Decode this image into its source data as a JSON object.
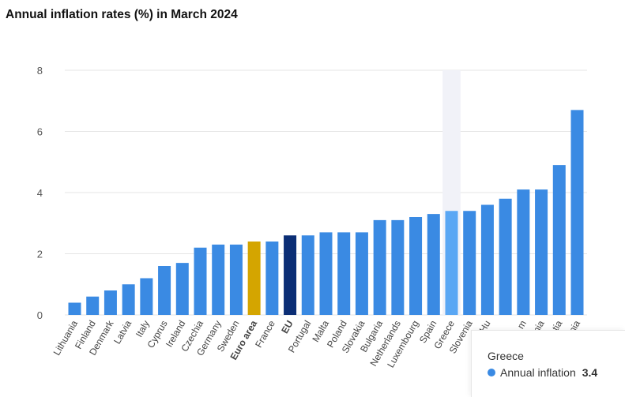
{
  "chart_title": "Annual inflation rates (%) in March 2024",
  "colors": {
    "bar": "#3a8ae3",
    "euro_area": "#d4a500",
    "eu": "#0b2e75",
    "highlight": "#5aa7f4",
    "grid": "#e5e5e5",
    "hover_band": "#f1f2f8"
  },
  "chart_data": {
    "type": "bar",
    "title": "Annual inflation rates (%) in March 2024",
    "xlabel": "",
    "ylabel": "",
    "ylim": [
      0,
      8
    ],
    "yticks": [
      0,
      2,
      4,
      6,
      8
    ],
    "grid": true,
    "categories": [
      "Lithuania",
      "Finland",
      "Denmark",
      "Latvia",
      "Italy",
      "Cyprus",
      "Ireland",
      "Czechia",
      "Germany",
      "Sweden",
      "Euro area",
      "France",
      "EU",
      "Portugal",
      "Malta",
      "Poland",
      "Slovakia",
      "Bulgaria",
      "Netherlands",
      "Luxembourg",
      "Spain",
      "Greece",
      "Slovenia",
      "Hungary",
      "Belgium",
      "Estonia",
      "Austria",
      "Croatia",
      "Romania"
    ],
    "visible_labels": [
      "Lithuania",
      "Finland",
      "Denmark",
      "Latvia",
      "Italy",
      "Cyprus",
      "Ireland",
      "Czechia",
      "Germany",
      "Sweden",
      "Euro area",
      "France",
      "EU",
      "Portugal",
      "Malta",
      "Poland",
      "Slovakia",
      "Bulgaria",
      "Netherlands",
      "Luxembourg",
      "Spain",
      "Greece",
      "Slovenia",
      "Hu",
      "",
      "m",
      "nia",
      "tia",
      "nia"
    ],
    "bold_categories": [
      "Euro area",
      "EU"
    ],
    "highlighted_category": "Greece",
    "series": [
      {
        "name": "Annual inflation",
        "values": [
          0.4,
          0.6,
          0.8,
          1.0,
          1.2,
          1.6,
          1.7,
          2.2,
          2.3,
          2.3,
          2.4,
          2.4,
          2.6,
          2.6,
          2.7,
          2.7,
          2.7,
          3.1,
          3.1,
          3.2,
          3.3,
          3.4,
          3.4,
          3.6,
          3.8,
          4.1,
          4.1,
          4.9,
          6.7
        ]
      }
    ]
  },
  "tooltip": {
    "country": "Greece",
    "series_label": "Annual inflation",
    "value": "3.4"
  }
}
